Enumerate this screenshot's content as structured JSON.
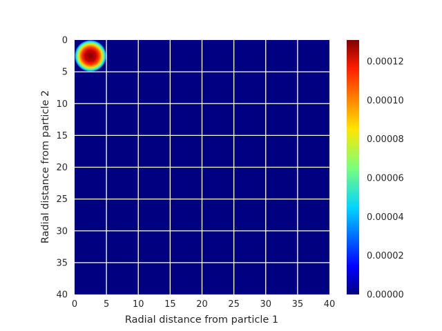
{
  "chart_data": {
    "type": "heatmap",
    "title": "",
    "xlabel": "Radial distance from particle 1",
    "ylabel": "Radial distance from particle 2",
    "xlim": [
      0,
      40
    ],
    "ylim": [
      0,
      40
    ],
    "y_inverted": true,
    "x_ticks": [
      0,
      5,
      10,
      15,
      20,
      25,
      30,
      35,
      40
    ],
    "y_ticks": [
      0,
      5,
      10,
      15,
      20,
      25,
      30,
      35,
      40
    ],
    "grid": true,
    "colormap": "jet",
    "colorbar": {
      "min": 0.0,
      "max": 0.000131,
      "ticks": [
        "0.00000",
        "0.00002",
        "0.00004",
        "0.00006",
        "0.00008",
        "0.00010",
        "0.00012"
      ],
      "tick_values": [
        0.0,
        2e-05,
        4e-05,
        6e-05,
        8e-05,
        0.0001,
        0.00012
      ]
    },
    "hotspot": {
      "region_x": [
        0,
        5
      ],
      "region_y": [
        0,
        5
      ],
      "peak_x": 2.5,
      "peak_y": 2.5,
      "peak_value": 0.000131,
      "background_value": 0.0
    }
  }
}
